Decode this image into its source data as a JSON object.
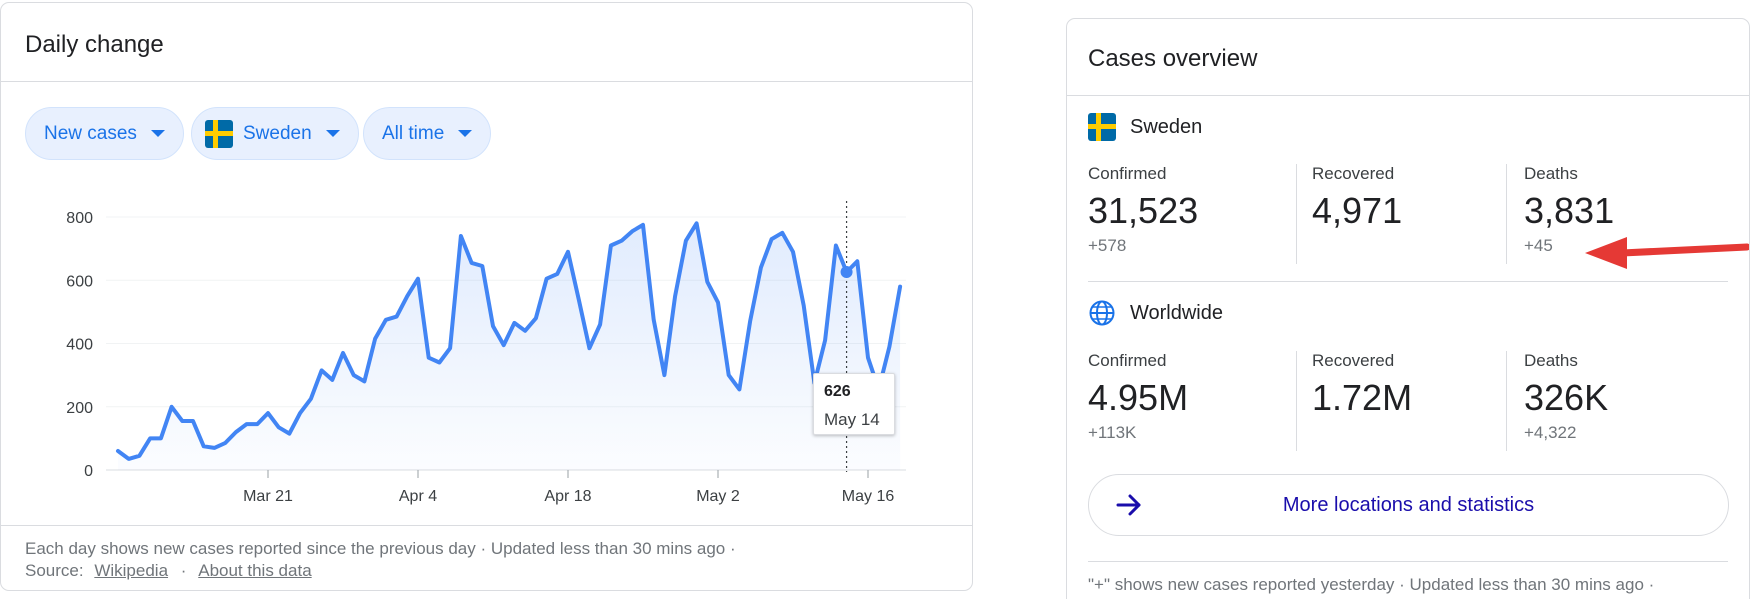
{
  "daily": {
    "title": "Daily change",
    "filters": [
      {
        "label": "New cases"
      },
      {
        "label": "Sweden"
      },
      {
        "label": "All time"
      }
    ],
    "tooltip": {
      "value": "626",
      "date": "May 14"
    },
    "footer": {
      "line1": "Each day shows new cases reported since the previous day · Updated less than 30 mins ago ·",
      "source_label": "Source:",
      "source_link": "Wikipedia",
      "separator": "·",
      "about_link": "About this data"
    }
  },
  "chart_data": {
    "type": "area",
    "ylim": [
      0,
      800
    ],
    "yticks": [
      0,
      200,
      400,
      600,
      800
    ],
    "x_tick_labels": [
      "Mar 21",
      "Apr 4",
      "Apr 18",
      "May 2",
      "May 16"
    ],
    "x_tick_dates": [
      "2020-03-21",
      "2020-04-04",
      "2020-04-18",
      "2020-05-02",
      "2020-05-16"
    ],
    "grid": true,
    "x": [
      "2020-03-07",
      "2020-03-08",
      "2020-03-09",
      "2020-03-10",
      "2020-03-11",
      "2020-03-12",
      "2020-03-13",
      "2020-03-14",
      "2020-03-15",
      "2020-03-16",
      "2020-03-17",
      "2020-03-18",
      "2020-03-19",
      "2020-03-20",
      "2020-03-21",
      "2020-03-22",
      "2020-03-23",
      "2020-03-24",
      "2020-03-25",
      "2020-03-26",
      "2020-03-27",
      "2020-03-28",
      "2020-03-29",
      "2020-03-30",
      "2020-03-31",
      "2020-04-01",
      "2020-04-02",
      "2020-04-03",
      "2020-04-04",
      "2020-04-05",
      "2020-04-06",
      "2020-04-07",
      "2020-04-08",
      "2020-04-09",
      "2020-04-10",
      "2020-04-11",
      "2020-04-12",
      "2020-04-13",
      "2020-04-14",
      "2020-04-15",
      "2020-04-16",
      "2020-04-17",
      "2020-04-18",
      "2020-04-19",
      "2020-04-20",
      "2020-04-21",
      "2020-04-22",
      "2020-04-23",
      "2020-04-24",
      "2020-04-25",
      "2020-04-26",
      "2020-04-27",
      "2020-04-28",
      "2020-04-29",
      "2020-04-30",
      "2020-05-01",
      "2020-05-02",
      "2020-05-03",
      "2020-05-04",
      "2020-05-05",
      "2020-05-06",
      "2020-05-07",
      "2020-05-08",
      "2020-05-09",
      "2020-05-10",
      "2020-05-11",
      "2020-05-12",
      "2020-05-13",
      "2020-05-14",
      "2020-05-15",
      "2020-05-16",
      "2020-05-17",
      "2020-05-18",
      "2020-05-19"
    ],
    "series": [
      {
        "values": [
          60,
          35,
          45,
          100,
          100,
          200,
          155,
          155,
          75,
          70,
          85,
          120,
          145,
          145,
          180,
          135,
          115,
          180,
          225,
          315,
          285,
          370,
          300,
          280,
          415,
          475,
          485,
          550,
          605,
          355,
          340,
          385,
          740,
          655,
          645,
          455,
          395,
          465,
          440,
          480,
          605,
          620,
          690,
          540,
          385,
          460,
          710,
          725,
          755,
          775,
          475,
          300,
          550,
          725,
          780,
          595,
          530,
          300,
          255,
          470,
          640,
          730,
          750,
          690,
          520,
          275,
          410,
          710,
          626,
          660,
          355,
          255,
          390,
          580
        ]
      }
    ],
    "highlight": {
      "date": "2020-05-14",
      "value": 626
    }
  },
  "overview": {
    "title": "Cases overview",
    "regions": [
      {
        "name": "Sweden",
        "stats": [
          {
            "label": "Confirmed",
            "value": "31,523",
            "delta": "+578"
          },
          {
            "label": "Recovered",
            "value": "4,971",
            "delta": ""
          },
          {
            "label": "Deaths",
            "value": "3,831",
            "delta": "+45"
          }
        ]
      },
      {
        "name": "Worldwide",
        "stats": [
          {
            "label": "Confirmed",
            "value": "4.95M",
            "delta": "+113K"
          },
          {
            "label": "Recovered",
            "value": "1.72M",
            "delta": ""
          },
          {
            "label": "Deaths",
            "value": "326K",
            "delta": "+4,322"
          }
        ]
      }
    ],
    "more_button": "More locations and statistics",
    "footer": "\"+\" shows new cases reported yesterday · Updated less than 30 mins ago ·",
    "colors": {
      "accent": "#1a73e8",
      "link": "#1a0dab",
      "annotation_arrow": "#e53935"
    }
  }
}
